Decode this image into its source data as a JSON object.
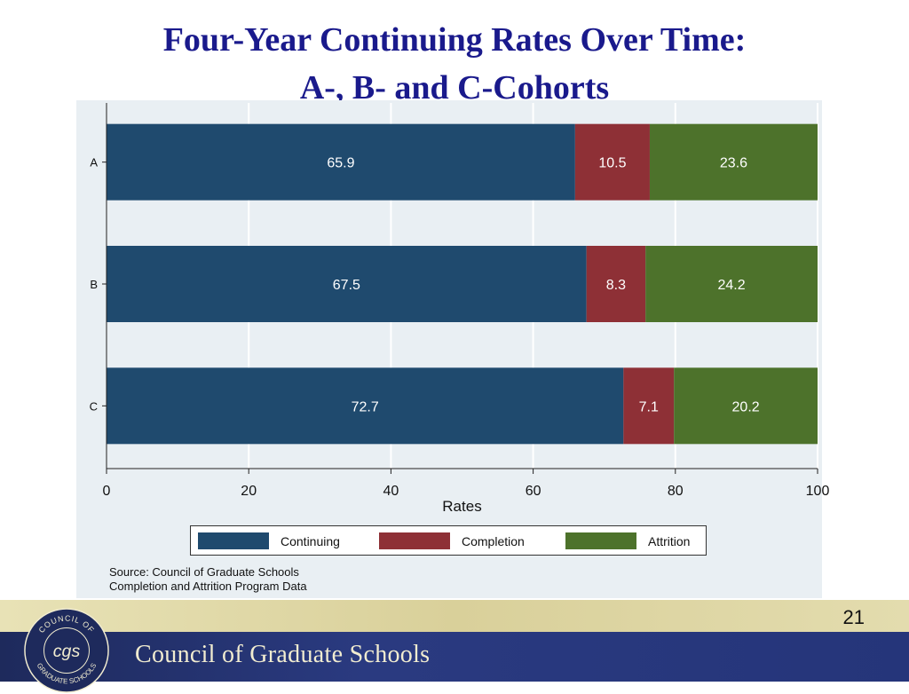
{
  "slide": {
    "title_line1": "Four-Year Continuing Rates Over Time:",
    "title_line2": "A-, B- and C-Cohorts",
    "source_line1": "Source: Council of Graduate Schools",
    "source_line2": "Completion and Attrition Program Data",
    "page_number": "21",
    "footer_org": "Council of Graduate Schools",
    "seal_text_top": "COUNCIL OF",
    "seal_text_bottom": "GRADUATE SCHOOLS",
    "seal_monogram": "cgs"
  },
  "colors": {
    "continuing": "#1f4a6e",
    "completion": "#8e3036",
    "attrition": "#4d722b"
  },
  "chart_data": {
    "type": "bar",
    "orientation": "horizontal",
    "stacked": true,
    "categories": [
      "A",
      "B",
      "C"
    ],
    "series": [
      {
        "name": "Continuing",
        "values": [
          65.9,
          67.5,
          72.7
        ]
      },
      {
        "name": "Completion",
        "values": [
          10.5,
          8.3,
          7.1
        ]
      },
      {
        "name": "Attrition",
        "values": [
          23.6,
          24.2,
          20.2
        ]
      }
    ],
    "xlabel": "Rates",
    "ylabel": "",
    "xlim": [
      0,
      100
    ],
    "xticks": [
      0,
      20,
      40,
      60,
      80,
      100
    ],
    "data_labels": true,
    "grid": true,
    "legend_position": "bottom"
  }
}
